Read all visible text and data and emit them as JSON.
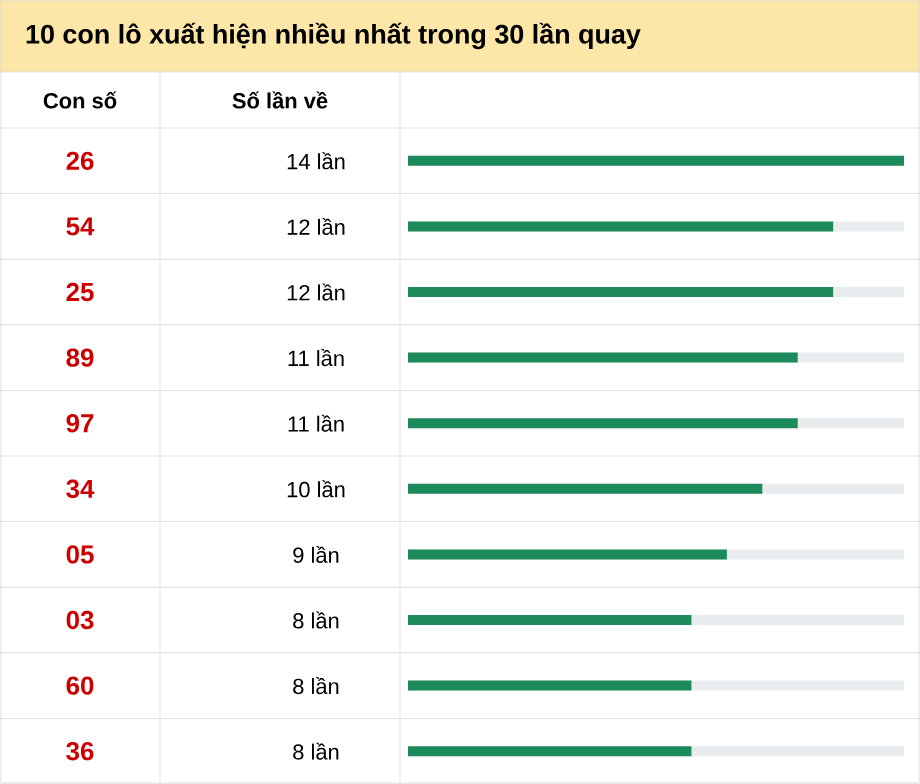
{
  "chart_data": {
    "type": "bar",
    "orientation": "horizontal",
    "title": "10 con lô xuất hiện nhiều nhất trong 30 lần quay",
    "annotations": [
      "Con số",
      "Số lần về"
    ],
    "categories": [
      "26",
      "54",
      "25",
      "89",
      "97",
      "34",
      "05",
      "03",
      "60",
      "36"
    ],
    "values": [
      14,
      12,
      12,
      11,
      11,
      10,
      9,
      8,
      8,
      8
    ],
    "value_labels": [
      "14 lần",
      "12 lần",
      "12 lần",
      "11 lần",
      "11 lần",
      "10 lần",
      "9 lần",
      "8 lần",
      "8 lần",
      "8 lần"
    ],
    "color": "#1c8a5a",
    "tick_labels": "y"
  }
}
